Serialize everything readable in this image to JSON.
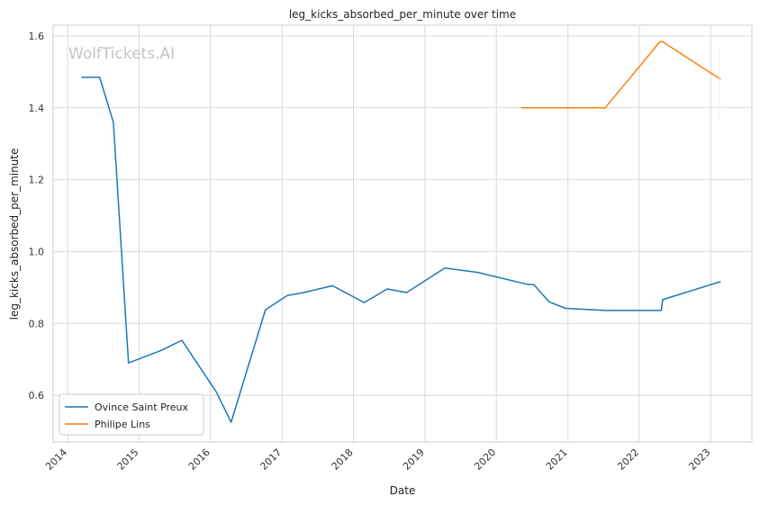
{
  "chart_data": {
    "type": "line",
    "title": "leg_kicks_absorbed_per_minute over time",
    "xlabel": "Date",
    "ylabel": "leg_kicks_absorbed_per_minute",
    "watermark": "WolfTickets.AI",
    "x_ticks": [
      "2014",
      "2015",
      "2016",
      "2017",
      "2018",
      "2019",
      "2020",
      "2021",
      "2022",
      "2023"
    ],
    "y_ticks": [
      "0.6",
      "0.8",
      "1.0",
      "1.2",
      "1.4",
      "1.6"
    ],
    "xlim": [
      "2013-10-19",
      "2023-07-30"
    ],
    "ylim": [
      0.47,
      1.63
    ],
    "grid": true,
    "legend_position": "bottom-left",
    "series": [
      {
        "name": "Ovince Saint Preux",
        "color": "#1f77b4",
        "points": [
          [
            "2014-03-15",
            1.485
          ],
          [
            "2014-06-14",
            1.485
          ],
          [
            "2014-08-23",
            1.36
          ],
          [
            "2014-11-08",
            0.69
          ],
          [
            "2015-04-25",
            0.725
          ],
          [
            "2015-08-08",
            0.753
          ],
          [
            "2016-01-30",
            0.61
          ],
          [
            "2016-04-16",
            0.525
          ],
          [
            "2016-10-08",
            0.838
          ],
          [
            "2017-01-28",
            0.878
          ],
          [
            "2017-04-22",
            0.886
          ],
          [
            "2017-09-16",
            0.905
          ],
          [
            "2018-02-24",
            0.858
          ],
          [
            "2018-06-23",
            0.896
          ],
          [
            "2018-09-29",
            0.886
          ],
          [
            "2019-04-13",
            0.954
          ],
          [
            "2019-09-28",
            0.942
          ],
          [
            "2020-06-06",
            0.909
          ],
          [
            "2020-07-11",
            0.908
          ],
          [
            "2020-09-26",
            0.86
          ],
          [
            "2020-12-19",
            0.842
          ],
          [
            "2021-07-10",
            0.836
          ],
          [
            "2022-04-23",
            0.836
          ],
          [
            "2022-04-30",
            0.866
          ],
          [
            "2023-02-18",
            0.916
          ]
        ]
      },
      {
        "name": "Philipe Lins",
        "color": "#ff7f0e",
        "points": [
          [
            "2020-05-09",
            1.4
          ],
          [
            "2021-07-10",
            1.4
          ],
          [
            "2022-04-16",
            1.584
          ],
          [
            "2022-04-30",
            1.584
          ],
          [
            "2023-02-18",
            1.48
          ]
        ]
      }
    ]
  }
}
